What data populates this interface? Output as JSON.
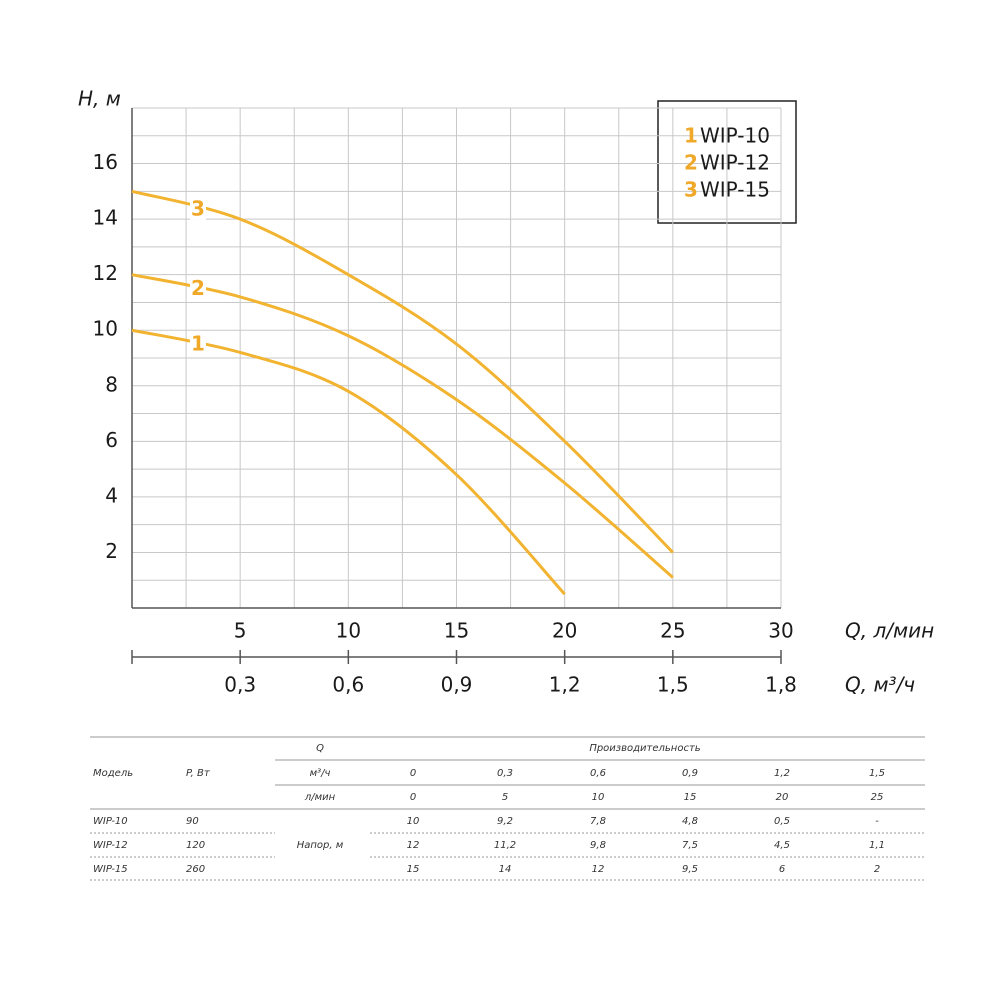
{
  "chart_data": {
    "type": "line",
    "y_label": "H, м",
    "x_label": "Q, л/мин",
    "x2_label": "Q, м³/ч",
    "x": [
      0,
      5,
      10,
      15,
      20,
      25
    ],
    "series": [
      {
        "name": "WIP-10",
        "label": "1",
        "color": "#f2b330",
        "values": [
          10,
          9.2,
          7.8,
          4.8,
          0.5,
          null
        ]
      },
      {
        "name": "WIP-12",
        "label": "2",
        "color": "#f2b330",
        "values": [
          12,
          11.2,
          9.8,
          7.5,
          4.5,
          1.1
        ]
      },
      {
        "name": "WIP-15",
        "label": "3",
        "color": "#f2b330",
        "values": [
          15,
          14,
          12,
          9.5,
          6,
          2
        ]
      }
    ],
    "xlim": [
      0,
      30
    ],
    "xticks": [
      5,
      10,
      15,
      20,
      25,
      30
    ],
    "x2lim": [
      0,
      1.8
    ],
    "x2ticks": [
      {
        "value": 0.3,
        "label": "0,3"
      },
      {
        "value": 0.6,
        "label": "0,6"
      },
      {
        "value": 0.9,
        "label": "0,9"
      },
      {
        "value": 1.2,
        "label": "1,2"
      },
      {
        "value": 1.5,
        "label": "1,5"
      },
      {
        "value": 1.8,
        "label": "1,8"
      }
    ],
    "ylim": [
      0,
      18
    ],
    "yticks": [
      2,
      4,
      6,
      8,
      10,
      12,
      14,
      16
    ],
    "grid": true,
    "grid_minor_x": [
      2.5,
      7.5,
      12.5,
      17.5,
      22.5,
      27.5
    ],
    "grid_minor_y": [
      1,
      3,
      5,
      7,
      9,
      11,
      13,
      15,
      17
    ],
    "legend": "top-right"
  },
  "table": {
    "q_label": "Q",
    "perf_label": "Производительность",
    "model_label": "Модель",
    "power_label": "P, Вт",
    "flow_m3_unit": "м³/ч",
    "flow_m3": [
      "0",
      "0,3",
      "0,6",
      "0,9",
      "1,2",
      "1,5"
    ],
    "flow_l_unit": "л/мин",
    "flow_l": [
      "0",
      "5",
      "10",
      "15",
      "20",
      "25"
    ],
    "head_label": "Напор, м",
    "rows": [
      {
        "model": "WIP-10",
        "power": "90",
        "head": [
          "10",
          "9,2",
          "7,8",
          "4,8",
          "0,5",
          "-"
        ]
      },
      {
        "model": "WIP-12",
        "power": "120",
        "head": [
          "12",
          "11,2",
          "9,8",
          "7,5",
          "4,5",
          "1,1"
        ]
      },
      {
        "model": "WIP-15",
        "power": "260",
        "head": [
          "15",
          "14",
          "12",
          "9,5",
          "6",
          "2"
        ]
      }
    ]
  }
}
